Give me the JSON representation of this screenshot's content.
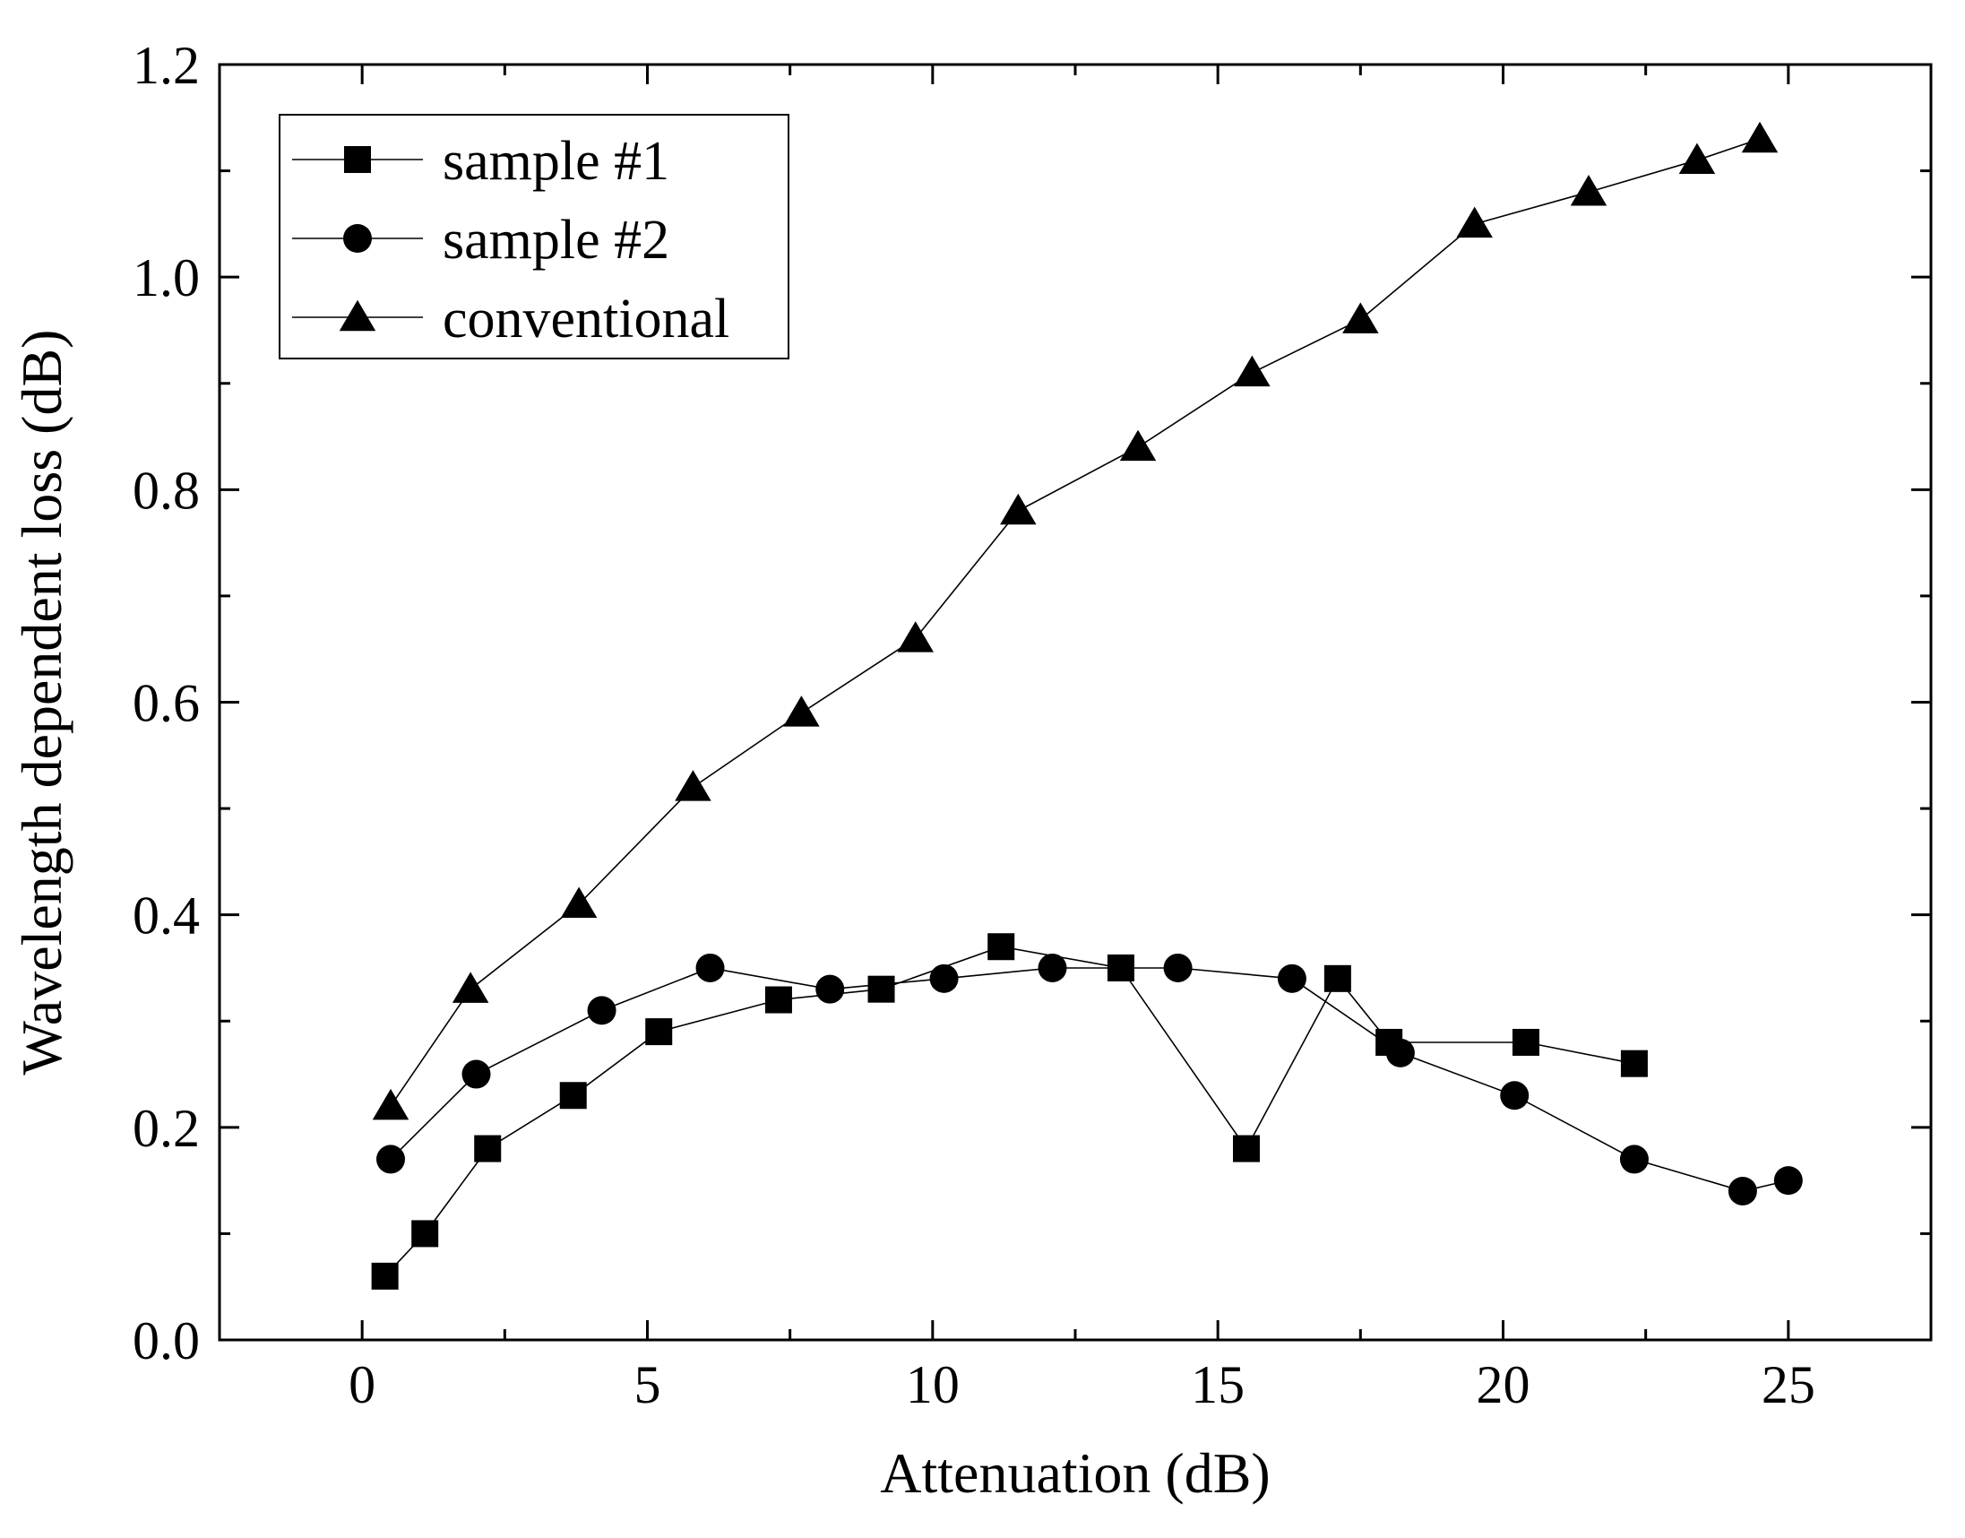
{
  "chart_data": {
    "type": "line",
    "title": "",
    "xlabel": "Attenuation (dB)",
    "ylabel": "Wavelength dependent loss (dB)",
    "xlim": [
      -2.5,
      27.5
    ],
    "ylim": [
      0.0,
      1.2
    ],
    "xticks": [
      0,
      5,
      10,
      15,
      20,
      25
    ],
    "xtick_labels": [
      "0",
      "5",
      "10",
      "15",
      "20",
      "25"
    ],
    "yticks": [
      0.0,
      0.2,
      0.4,
      0.6,
      0.8,
      1.0,
      1.2
    ],
    "ytick_labels": [
      "0.0",
      "0.2",
      "0.4",
      "0.6",
      "0.8",
      "1.0",
      "1.2"
    ],
    "grid": false,
    "legend_position": "top-left",
    "series": [
      {
        "name": "sample #1",
        "marker": "square",
        "x": [
          0.4,
          1.1,
          2.2,
          3.7,
          5.2,
          7.3,
          9.1,
          11.2,
          13.3,
          15.5,
          17.1,
          18.0,
          20.4,
          22.3
        ],
        "y": [
          0.06,
          0.1,
          0.18,
          0.23,
          0.29,
          0.32,
          0.33,
          0.37,
          0.35,
          0.18,
          0.34,
          0.28,
          0.28,
          0.26
        ]
      },
      {
        "name": "sample #2",
        "marker": "circle",
        "x": [
          0.5,
          2.0,
          4.2,
          6.1,
          8.2,
          10.2,
          12.1,
          14.3,
          16.3,
          18.2,
          20.2,
          22.3,
          24.2,
          25.0
        ],
        "y": [
          0.17,
          0.25,
          0.31,
          0.35,
          0.33,
          0.34,
          0.35,
          0.35,
          0.34,
          0.27,
          0.23,
          0.17,
          0.14,
          0.15
        ]
      },
      {
        "name": "conventional",
        "marker": "triangle",
        "x": [
          0.5,
          1.9,
          3.8,
          5.8,
          7.7,
          9.7,
          11.5,
          13.6,
          15.6,
          17.5,
          19.5,
          21.5,
          23.4,
          24.5
        ],
        "y": [
          0.22,
          0.33,
          0.41,
          0.52,
          0.59,
          0.66,
          0.78,
          0.84,
          0.91,
          0.96,
          1.05,
          1.08,
          1.11,
          1.13
        ]
      }
    ]
  }
}
